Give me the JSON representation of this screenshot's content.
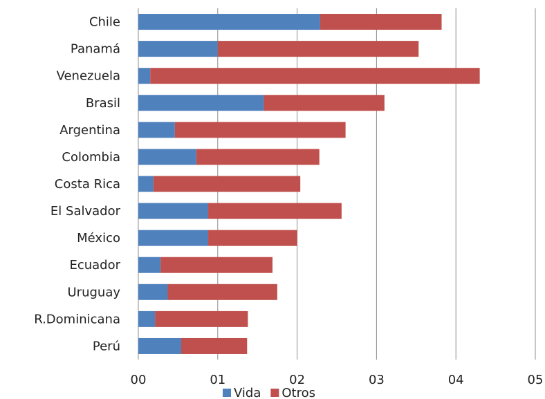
{
  "chart_data": {
    "type": "bar",
    "orientation": "horizontal",
    "stacked": true,
    "categories": [
      "Chile",
      "Panamá",
      "Venezuela",
      "Brasil",
      "Argentina",
      "Colombia",
      "Costa Rica",
      "El Salvador",
      "México",
      "Ecuador",
      "Uruguay",
      "R.Dominicana",
      "Perú"
    ],
    "series": [
      {
        "name": "Vida",
        "color": "#4f81bd",
        "values": [
          2.29,
          1.0,
          0.15,
          1.58,
          0.46,
          0.73,
          0.19,
          0.88,
          0.88,
          0.28,
          0.37,
          0.21,
          0.54
        ]
      },
      {
        "name": "Otros",
        "color": "#c0504d",
        "values": [
          1.53,
          2.53,
          4.15,
          1.52,
          2.15,
          1.55,
          1.85,
          1.68,
          1.12,
          1.41,
          1.38,
          1.17,
          0.83
        ]
      }
    ],
    "xlim": [
      0,
      5
    ],
    "xticks": [
      0,
      1,
      2,
      3,
      4,
      5
    ],
    "xtick_labels": [
      "00",
      "01",
      "02",
      "03",
      "04",
      "05"
    ],
    "grid": true,
    "legend_position": "bottom"
  }
}
